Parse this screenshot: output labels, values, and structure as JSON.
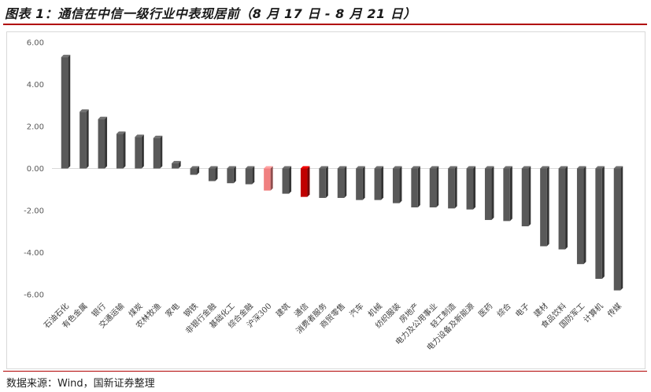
{
  "title": "图表 1：通信在中信一级行业中表现居前（8 月 17 日 - 8 月 21 日）",
  "source": "数据来源：Wind，国新证券整理",
  "colors": {
    "default": "#595959",
    "benchmark": "#f08080",
    "highlight": "#c00000",
    "accent": "#b00000"
  },
  "chart_data": {
    "type": "bar",
    "title": "",
    "xlabel": "",
    "ylabel": "",
    "ylim": [
      -6,
      6
    ],
    "yticks": [
      "6.00",
      "4.00",
      "2.00",
      "0.00",
      "-2.00",
      "-4.00",
      "-6.00"
    ],
    "grid": false,
    "legend": "none",
    "categories": [
      "石油石化",
      "有色金属",
      "银行",
      "交通运输",
      "煤炭",
      "农林牧渔",
      "家电",
      "钢铁",
      "非银行金融",
      "基础化工",
      "综合金融",
      "沪深300",
      "建筑",
      "通信",
      "消费者服务",
      "商贸零售",
      "汽车",
      "机械",
      "纺织服装",
      "房地产",
      "电力及公用事业",
      "轻工制造",
      "电力设备及新能源",
      "医药",
      "综合",
      "电子",
      "建材",
      "食品饮料",
      "国防军工",
      "计算机",
      "传媒"
    ],
    "values": [
      5.3,
      2.7,
      2.35,
      1.65,
      1.5,
      1.45,
      0.25,
      -0.3,
      -0.6,
      -0.7,
      -0.75,
      -1.05,
      -1.2,
      -1.35,
      -1.4,
      -1.4,
      -1.5,
      -1.5,
      -1.65,
      -1.85,
      -1.85,
      -1.9,
      -1.95,
      -2.45,
      -2.5,
      -2.75,
      -3.7,
      -3.85,
      -4.55,
      -5.25,
      -5.8
    ],
    "highlight": {
      "沪深300": "benchmark",
      "通信": "highlight"
    }
  }
}
